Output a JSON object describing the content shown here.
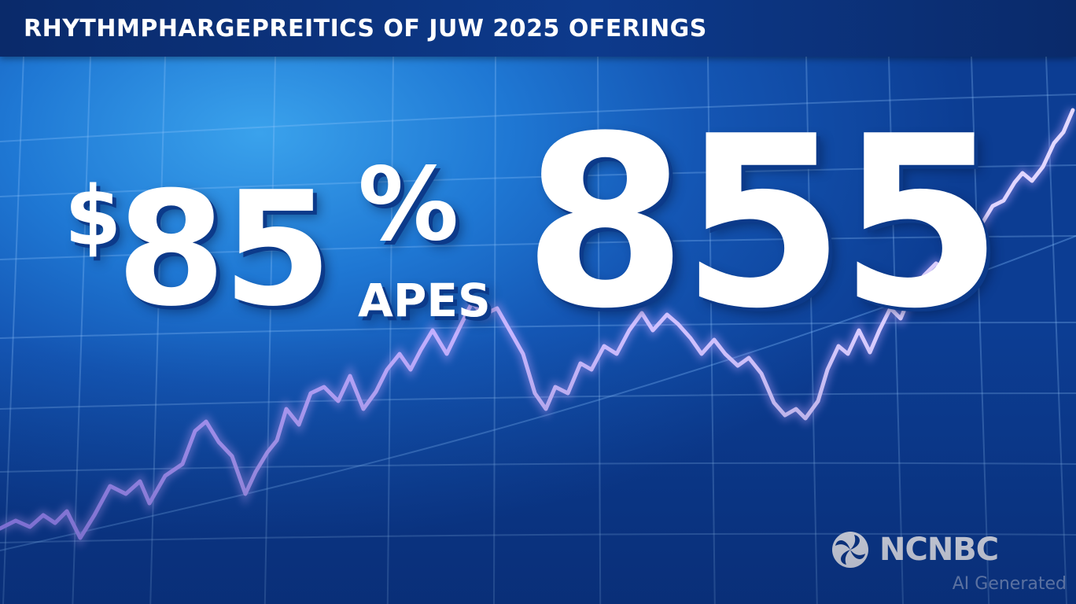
{
  "header": {
    "title": "RHYTHMPHARGEPREITICS OF JUW 2025 OFERINGS"
  },
  "headline": {
    "currency_symbol": "$",
    "value_left": "85",
    "percent_sign": "%",
    "sub_label": "APES",
    "value_right": "855"
  },
  "brand": {
    "name": "NCNBC",
    "logo_icon": "ncnbc-logo-icon"
  },
  "watermark": {
    "text": "AI Generated"
  },
  "colors": {
    "line_start": "#b9a6ff",
    "line_end": "#d6c8ff",
    "text": "#ffffff",
    "shadow": "#0c3a8a"
  }
}
